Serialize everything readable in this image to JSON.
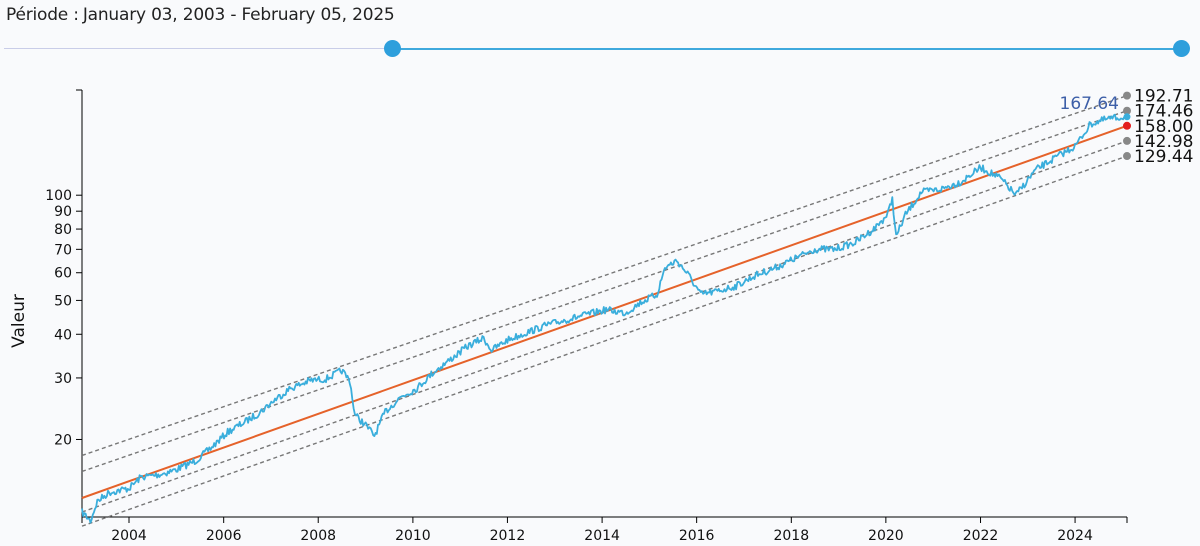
{
  "header": {
    "period_label": "Période :",
    "period_value": "January 03, 2003 - February 05, 2025"
  },
  "slider": {
    "start_fraction": 0.33,
    "end_fraction": 1.0
  },
  "colors": {
    "series": "#3aaedc",
    "trend": "#e5622a",
    "band": "#777777",
    "current_marker": "#3aaedc",
    "trend_end_marker": "#e41e1e",
    "band_marker": "#888888",
    "current_label": "#3d5fa8"
  },
  "chart_data": {
    "type": "line",
    "title": "",
    "ylabel": "Valeur",
    "xlabel": "",
    "y_scale": "log",
    "ylim": [
      12,
      200
    ],
    "xlim": [
      "2003-01-03",
      "2025-02-05"
    ],
    "x_ticks": [
      "2004",
      "2006",
      "2008",
      "2010",
      "2012",
      "2014",
      "2016",
      "2018",
      "2020",
      "2022",
      "2024"
    ],
    "y_ticks": [
      20,
      30,
      40,
      50,
      60,
      70,
      80,
      90,
      100
    ],
    "series": [
      {
        "role": "price",
        "points": [
          [
            "2003-01-03",
            12.4
          ],
          [
            "2003-03-10",
            11.7
          ],
          [
            "2003-05-01",
            13.3
          ],
          [
            "2003-08-01",
            14.1
          ],
          [
            "2004-01-01",
            14.5
          ],
          [
            "2004-04-01",
            15.6
          ],
          [
            "2004-09-01",
            15.9
          ],
          [
            "2005-01-01",
            16.4
          ],
          [
            "2005-06-01",
            17.4
          ],
          [
            "2005-10-01",
            19.0
          ],
          [
            "2006-02-01",
            21.0
          ],
          [
            "2006-06-01",
            22.3
          ],
          [
            "2006-10-01",
            23.8
          ],
          [
            "2007-02-01",
            26.0
          ],
          [
            "2007-06-01",
            28.0
          ],
          [
            "2007-11-01",
            29.5
          ],
          [
            "2008-03-01",
            29.8
          ],
          [
            "2008-07-01",
            31.5
          ],
          [
            "2008-09-01",
            29.5
          ],
          [
            "2008-10-10",
            23.5
          ],
          [
            "2009-01-01",
            22.0
          ],
          [
            "2009-03-10",
            20.5
          ],
          [
            "2009-06-01",
            24.0
          ],
          [
            "2009-10-01",
            26.5
          ],
          [
            "2010-02-01",
            28.0
          ],
          [
            "2010-06-01",
            31.0
          ],
          [
            "2010-10-01",
            33.5
          ],
          [
            "2011-03-01",
            37.0
          ],
          [
            "2011-07-01",
            39.0
          ],
          [
            "2011-09-01",
            36.0
          ],
          [
            "2012-01-01",
            38.5
          ],
          [
            "2012-06-01",
            40.5
          ],
          [
            "2012-11-01",
            42.5
          ],
          [
            "2013-04-01",
            44.0
          ],
          [
            "2013-09-01",
            45.5
          ],
          [
            "2014-02-01",
            47.0
          ],
          [
            "2014-07-01",
            46.0
          ],
          [
            "2014-11-01",
            49.5
          ],
          [
            "2015-03-01",
            52.0
          ],
          [
            "2015-05-01",
            62.0
          ],
          [
            "2015-08-01",
            65.0
          ],
          [
            "2015-11-01",
            59.0
          ],
          [
            "2016-02-01",
            52.0
          ],
          [
            "2016-06-01",
            53.0
          ],
          [
            "2016-11-01",
            55.0
          ],
          [
            "2017-04-01",
            59.0
          ],
          [
            "2017-09-01",
            62.0
          ],
          [
            "2018-02-01",
            66.0
          ],
          [
            "2018-07-01",
            70.0
          ],
          [
            "2018-12-01",
            70.0
          ],
          [
            "2019-05-01",
            73.0
          ],
          [
            "2019-10-01",
            80.0
          ],
          [
            "2020-01-15",
            88.0
          ],
          [
            "2020-02-20",
            98.0
          ],
          [
            "2020-03-20",
            76.0
          ],
          [
            "2020-06-01",
            88.0
          ],
          [
            "2020-10-01",
            102.0
          ],
          [
            "2021-03-01",
            104.0
          ],
          [
            "2021-08-01",
            109.0
          ],
          [
            "2022-01-01",
            120.0
          ],
          [
            "2022-06-01",
            112.0
          ],
          [
            "2022-10-01",
            100.0
          ],
          [
            "2023-03-01",
            118.0
          ],
          [
            "2023-08-01",
            128.0
          ],
          [
            "2024-01-01",
            138.0
          ],
          [
            "2024-05-01",
            160.0
          ],
          [
            "2024-09-01",
            165.0
          ],
          [
            "2025-01-15",
            167.64
          ]
        ]
      },
      {
        "role": "trend",
        "points": [
          [
            "2003-01-03",
            13.6
          ],
          [
            "2025-02-05",
            158.0
          ]
        ]
      },
      {
        "role": "band",
        "points": [
          [
            "2003-01-03",
            18.0
          ],
          [
            "2025-02-05",
            192.71
          ]
        ]
      },
      {
        "role": "band",
        "points": [
          [
            "2003-01-03",
            16.2
          ],
          [
            "2025-02-05",
            174.46
          ]
        ]
      },
      {
        "role": "band",
        "points": [
          [
            "2003-01-03",
            12.4
          ],
          [
            "2025-02-05",
            142.98
          ]
        ]
      },
      {
        "role": "band",
        "points": [
          [
            "2003-01-03",
            11.3
          ],
          [
            "2025-02-05",
            129.44
          ]
        ]
      }
    ],
    "end_labels": {
      "current": "167.64",
      "upper_2": "192.71",
      "upper_1": "174.46",
      "trend": "158.00",
      "lower_1": "142.98",
      "lower_2": "129.44"
    }
  }
}
